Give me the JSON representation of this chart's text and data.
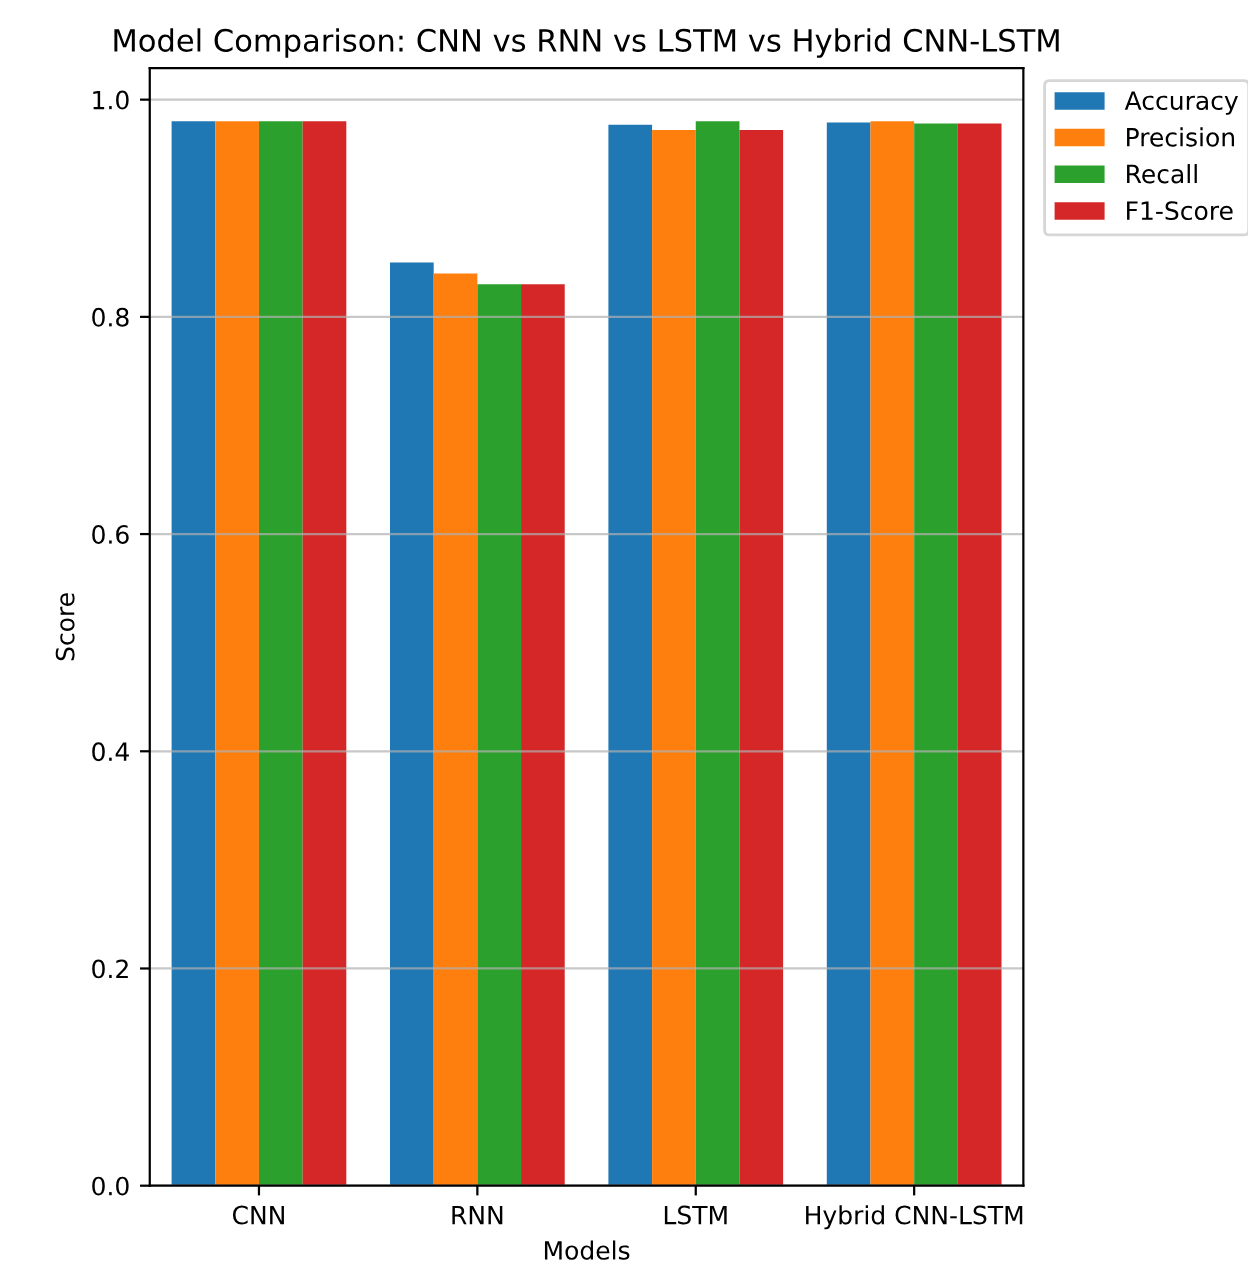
{
  "chart_data": {
    "type": "bar",
    "title": "Model Comparison: CNN vs RNN vs LSTM vs Hybrid CNN-LSTM",
    "xlabel": "Models",
    "ylabel": "Score",
    "categories": [
      "CNN",
      "RNN",
      "LSTM",
      "Hybrid CNN-LSTM"
    ],
    "series": [
      {
        "name": "Accuracy",
        "color": "#1f77b4",
        "values": [
          0.98,
          0.85,
          0.977,
          0.979
        ]
      },
      {
        "name": "Precision",
        "color": "#ff7f0e",
        "values": [
          0.98,
          0.84,
          0.972,
          0.98
        ]
      },
      {
        "name": "Recall",
        "color": "#2ca02c",
        "values": [
          0.98,
          0.83,
          0.98,
          0.978
        ]
      },
      {
        "name": "F1-Score",
        "color": "#d62728",
        "values": [
          0.98,
          0.83,
          0.972,
          0.978
        ]
      }
    ],
    "ylim": [
      0,
      1.029
    ],
    "yticks": [
      {
        "value": 0,
        "label": "0.0"
      },
      0.2,
      0.4,
      0.6,
      0.8,
      {
        "value": 1,
        "label": "1.0"
      }
    ],
    "grid": "y",
    "legend": "top right"
  }
}
